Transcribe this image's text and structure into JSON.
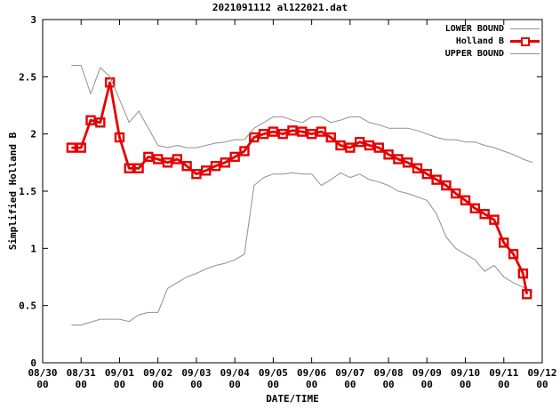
{
  "chart_data": {
    "type": "line",
    "title": "2021091112 al122021.dat",
    "xlabel": "DATE/TIME",
    "ylabel": "Simplified Holland B",
    "xlim_days": [
      0,
      13
    ],
    "ylim": [
      0,
      3
    ],
    "y_ticks": [
      0,
      0.5,
      1,
      1.5,
      2,
      2.5,
      3
    ],
    "x_tick_labels": [
      {
        "date": "08/30",
        "hour": "00"
      },
      {
        "date": "08/31",
        "hour": "00"
      },
      {
        "date": "09/01",
        "hour": "00"
      },
      {
        "date": "09/02",
        "hour": "00"
      },
      {
        "date": "09/03",
        "hour": "00"
      },
      {
        "date": "09/04",
        "hour": "00"
      },
      {
        "date": "09/05",
        "hour": "00"
      },
      {
        "date": "09/06",
        "hour": "00"
      },
      {
        "date": "09/07",
        "hour": "00"
      },
      {
        "date": "09/08",
        "hour": "00"
      },
      {
        "date": "09/09",
        "hour": "00"
      },
      {
        "date": "09/10",
        "hour": "00"
      },
      {
        "date": "09/11",
        "hour": "00"
      },
      {
        "date": "09/12",
        "hour": "00"
      }
    ],
    "legend": [
      {
        "label": "LOWER BOUND",
        "style": "gray-line"
      },
      {
        "label": "Holland B",
        "style": "red-line-open-square"
      },
      {
        "label": "UPPER BOUND",
        "style": "gray-line"
      }
    ],
    "colors": {
      "bounds": "#909090",
      "holland_b": "#e60000",
      "axis": "#000000"
    },
    "series": [
      {
        "name": "LOWER BOUND",
        "color": "#909090",
        "width": 1,
        "marker": "none",
        "points": [
          [
            0.75,
            0.33
          ],
          [
            1.0,
            0.33
          ],
          [
            1.5,
            0.38
          ],
          [
            2.0,
            0.38
          ],
          [
            2.25,
            0.36
          ],
          [
            2.5,
            0.42
          ],
          [
            2.75,
            0.44
          ],
          [
            3.0,
            0.44
          ],
          [
            3.25,
            0.65
          ],
          [
            3.5,
            0.7
          ],
          [
            3.75,
            0.75
          ],
          [
            4.0,
            0.78
          ],
          [
            4.25,
            0.82
          ],
          [
            4.5,
            0.85
          ],
          [
            4.75,
            0.87
          ],
          [
            5.0,
            0.9
          ],
          [
            5.25,
            0.95
          ],
          [
            5.5,
            1.55
          ],
          [
            5.75,
            1.62
          ],
          [
            6.0,
            1.65
          ],
          [
            6.25,
            1.65
          ],
          [
            6.5,
            1.66
          ],
          [
            6.75,
            1.65
          ],
          [
            7.0,
            1.65
          ],
          [
            7.25,
            1.55
          ],
          [
            7.5,
            1.6
          ],
          [
            7.75,
            1.66
          ],
          [
            8.0,
            1.62
          ],
          [
            8.25,
            1.65
          ],
          [
            8.5,
            1.6
          ],
          [
            8.75,
            1.58
          ],
          [
            9.0,
            1.55
          ],
          [
            9.25,
            1.5
          ],
          [
            9.5,
            1.48
          ],
          [
            9.75,
            1.45
          ],
          [
            10.0,
            1.42
          ],
          [
            10.25,
            1.3
          ],
          [
            10.5,
            1.1
          ],
          [
            10.75,
            1.0
          ],
          [
            11.0,
            0.95
          ],
          [
            11.25,
            0.9
          ],
          [
            11.5,
            0.8
          ],
          [
            11.75,
            0.85
          ],
          [
            12.0,
            0.75
          ],
          [
            12.25,
            0.7
          ],
          [
            12.5,
            0.66
          ],
          [
            12.75,
            0.62
          ]
        ]
      },
      {
        "name": "Holland B",
        "color": "#e60000",
        "width": 2.8,
        "marker": "open-square",
        "points": [
          [
            0.75,
            1.88
          ],
          [
            1.0,
            1.88
          ],
          [
            1.25,
            2.12
          ],
          [
            1.5,
            2.1
          ],
          [
            1.75,
            2.45
          ],
          [
            2.0,
            1.97
          ],
          [
            2.25,
            1.7
          ],
          [
            2.5,
            1.7
          ],
          [
            2.75,
            1.8
          ],
          [
            3.0,
            1.78
          ],
          [
            3.25,
            1.75
          ],
          [
            3.5,
            1.78
          ],
          [
            3.75,
            1.72
          ],
          [
            4.0,
            1.65
          ],
          [
            4.25,
            1.68
          ],
          [
            4.5,
            1.72
          ],
          [
            4.75,
            1.75
          ],
          [
            5.0,
            1.8
          ],
          [
            5.25,
            1.85
          ],
          [
            5.5,
            1.97
          ],
          [
            5.75,
            2.0
          ],
          [
            6.0,
            2.02
          ],
          [
            6.25,
            2.0
          ],
          [
            6.5,
            2.03
          ],
          [
            6.75,
            2.02
          ],
          [
            7.0,
            2.0
          ],
          [
            7.25,
            2.02
          ],
          [
            7.5,
            1.97
          ],
          [
            7.75,
            1.9
          ],
          [
            8.0,
            1.88
          ],
          [
            8.25,
            1.93
          ],
          [
            8.5,
            1.9
          ],
          [
            8.75,
            1.88
          ],
          [
            9.0,
            1.82
          ],
          [
            9.25,
            1.78
          ],
          [
            9.5,
            1.75
          ],
          [
            9.75,
            1.7
          ],
          [
            10.0,
            1.65
          ],
          [
            10.25,
            1.6
          ],
          [
            10.5,
            1.55
          ],
          [
            10.75,
            1.48
          ],
          [
            11.0,
            1.42
          ],
          [
            11.25,
            1.35
          ],
          [
            11.5,
            1.3
          ],
          [
            11.75,
            1.25
          ],
          [
            12.0,
            1.05
          ],
          [
            12.25,
            0.95
          ],
          [
            12.5,
            0.78
          ],
          [
            12.6,
            0.6
          ]
        ]
      },
      {
        "name": "UPPER BOUND",
        "color": "#909090",
        "width": 1,
        "marker": "none",
        "points": [
          [
            0.75,
            2.6
          ],
          [
            1.0,
            2.6
          ],
          [
            1.25,
            2.35
          ],
          [
            1.5,
            2.58
          ],
          [
            1.75,
            2.5
          ],
          [
            2.0,
            2.3
          ],
          [
            2.25,
            2.1
          ],
          [
            2.5,
            2.2
          ],
          [
            2.75,
            2.05
          ],
          [
            3.0,
            1.9
          ],
          [
            3.25,
            1.88
          ],
          [
            3.5,
            1.9
          ],
          [
            3.75,
            1.88
          ],
          [
            4.0,
            1.88
          ],
          [
            4.25,
            1.9
          ],
          [
            4.5,
            1.92
          ],
          [
            4.75,
            1.93
          ],
          [
            5.0,
            1.95
          ],
          [
            5.25,
            1.95
          ],
          [
            5.5,
            2.05
          ],
          [
            5.75,
            2.1
          ],
          [
            6.0,
            2.15
          ],
          [
            6.25,
            2.15
          ],
          [
            6.5,
            2.12
          ],
          [
            6.75,
            2.1
          ],
          [
            7.0,
            2.15
          ],
          [
            7.25,
            2.15
          ],
          [
            7.5,
            2.1
          ],
          [
            7.75,
            2.12
          ],
          [
            8.0,
            2.15
          ],
          [
            8.25,
            2.15
          ],
          [
            8.5,
            2.1
          ],
          [
            8.75,
            2.08
          ],
          [
            9.0,
            2.05
          ],
          [
            9.25,
            2.05
          ],
          [
            9.5,
            2.05
          ],
          [
            9.75,
            2.03
          ],
          [
            10.0,
            2.0
          ],
          [
            10.25,
            1.97
          ],
          [
            10.5,
            1.95
          ],
          [
            10.75,
            1.95
          ],
          [
            11.0,
            1.93
          ],
          [
            11.25,
            1.93
          ],
          [
            11.5,
            1.9
          ],
          [
            11.75,
            1.88
          ],
          [
            12.0,
            1.85
          ],
          [
            12.25,
            1.82
          ],
          [
            12.5,
            1.78
          ],
          [
            12.75,
            1.75
          ]
        ]
      }
    ]
  }
}
